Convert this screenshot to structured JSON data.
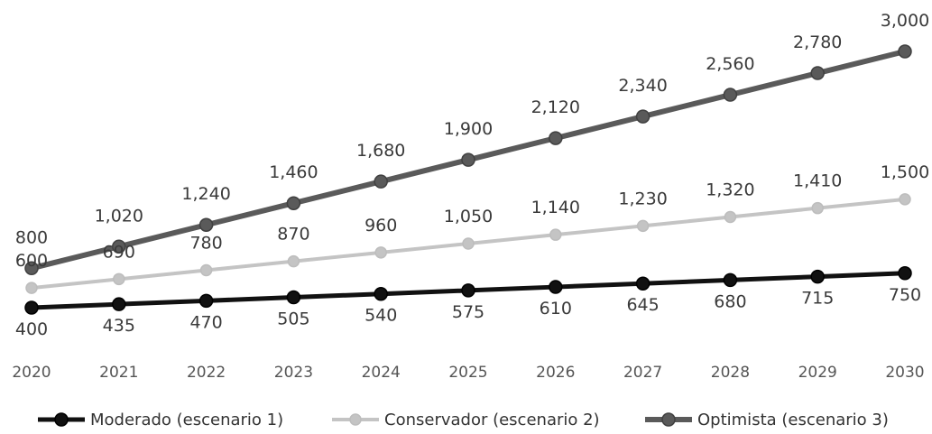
{
  "chart_data": {
    "type": "line",
    "categories": [
      "2020",
      "2021",
      "2022",
      "2023",
      "2024",
      "2025",
      "2026",
      "2027",
      "2028",
      "2029",
      "2030"
    ],
    "series": [
      {
        "name": "Moderado (escenario 1)",
        "values": [
          400,
          435,
          470,
          505,
          540,
          575,
          610,
          645,
          680,
          715,
          750
        ],
        "labels": [
          "400",
          "435",
          "470",
          "505",
          "540",
          "575",
          "610",
          "645",
          "680",
          "715",
          "750"
        ],
        "color": "#111111"
      },
      {
        "name": "Conservador (escenario 2)",
        "values": [
          600,
          690,
          780,
          870,
          960,
          1050,
          1140,
          1230,
          1320,
          1410,
          1500
        ],
        "labels": [
          "600",
          "690",
          "780",
          "870",
          "960",
          "1,050",
          "1,140",
          "1,230",
          "1,320",
          "1,410",
          "1,500"
        ],
        "color": "#c4c4c4"
      },
      {
        "name": "Optimista (escenario 3)",
        "values": [
          800,
          1020,
          1240,
          1460,
          1680,
          1900,
          2120,
          2340,
          2560,
          2780,
          3000
        ],
        "labels": [
          "800",
          "1,020",
          "1,240",
          "1,460",
          "1,680",
          "1,900",
          "2,120",
          "2,340",
          "2,560",
          "2,780",
          "3,000"
        ],
        "color": "#5a5a5a"
      }
    ],
    "grid": false,
    "legend_position": "bottom"
  }
}
